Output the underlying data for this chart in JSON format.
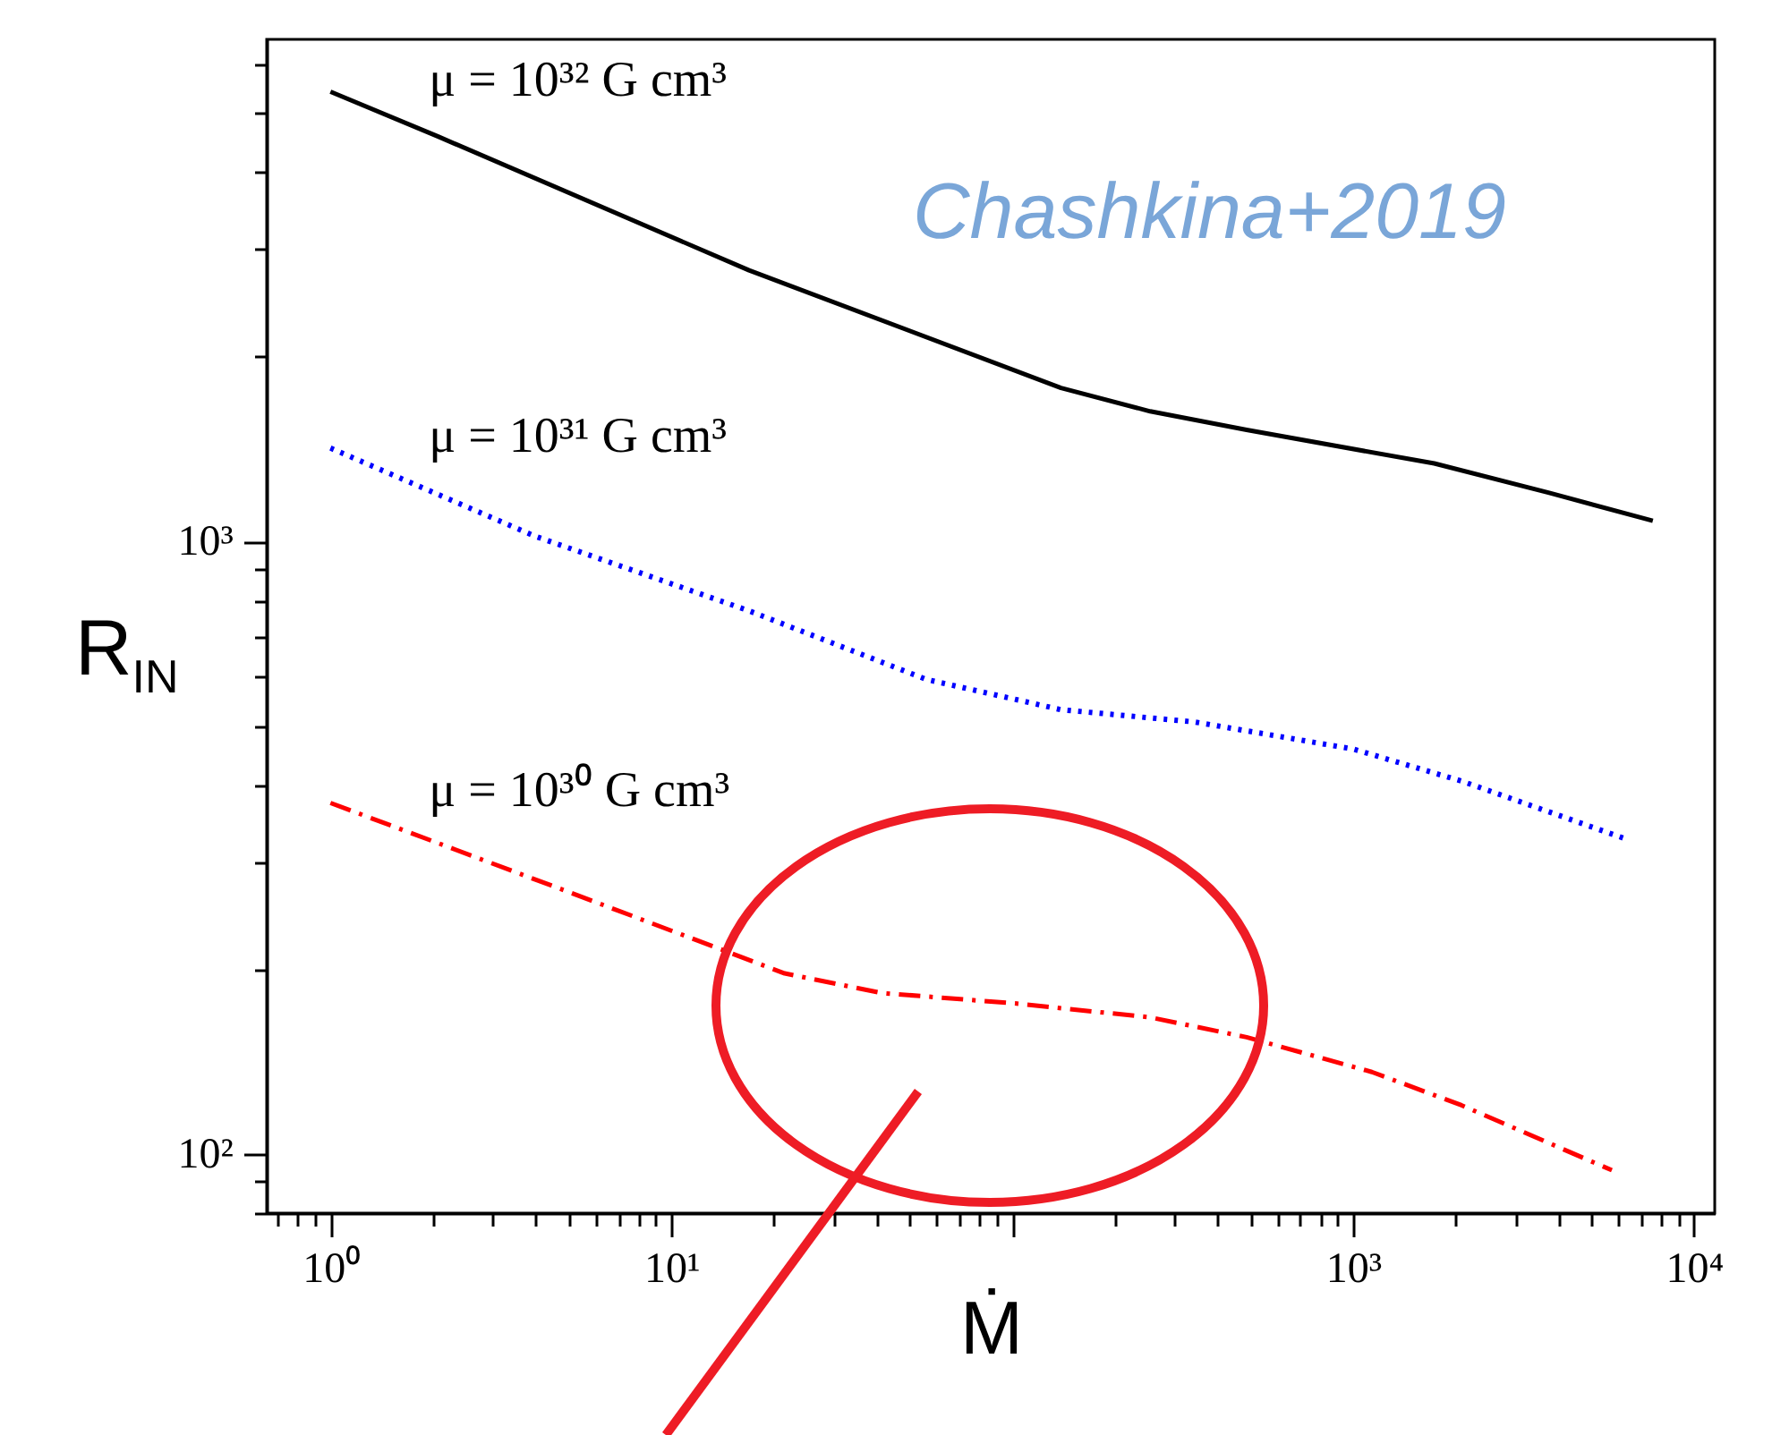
{
  "chart_data": {
    "type": "line",
    "xlabel": "Ṁ",
    "ylabel": "R$_{IN}$",
    "log": "xy",
    "marker": "none",
    "xlim": [
      0.65,
      11500
    ],
    "ylim": [
      80,
      6600
    ],
    "xticks": [
      {
        "value": 0.7,
        "label": null
      },
      {
        "value": 0.8,
        "label": null
      },
      {
        "value": 0.9,
        "label": null
      },
      {
        "value": 1,
        "label": "10⁰"
      },
      {
        "value": 2,
        "label": null
      },
      {
        "value": 3,
        "label": null
      },
      {
        "value": 4,
        "label": null
      },
      {
        "value": 5,
        "label": null
      },
      {
        "value": 6,
        "label": null
      },
      {
        "value": 7,
        "label": null
      },
      {
        "value": 8,
        "label": null
      },
      {
        "value": 9,
        "label": null
      },
      {
        "value": 10,
        "label": "10¹"
      },
      {
        "value": 20,
        "label": null
      },
      {
        "value": 30,
        "label": null
      },
      {
        "value": 40,
        "label": null
      },
      {
        "value": 50,
        "label": null
      },
      {
        "value": 60,
        "label": null
      },
      {
        "value": 70,
        "label": null
      },
      {
        "value": 80,
        "label": null
      },
      {
        "value": 90,
        "label": null
      },
      {
        "value": 100,
        "label": null
      },
      {
        "value": 200,
        "label": null
      },
      {
        "value": 300,
        "label": null
      },
      {
        "value": 400,
        "label": null
      },
      {
        "value": 500,
        "label": null
      },
      {
        "value": 600,
        "label": null
      },
      {
        "value": 700,
        "label": null
      },
      {
        "value": 800,
        "label": null
      },
      {
        "value": 900,
        "label": null
      },
      {
        "value": 1000,
        "label": "10³"
      },
      {
        "value": 2000,
        "label": null
      },
      {
        "value": 3000,
        "label": null
      },
      {
        "value": 4000,
        "label": null
      },
      {
        "value": 5000,
        "label": null
      },
      {
        "value": 6000,
        "label": null
      },
      {
        "value": 7000,
        "label": null
      },
      {
        "value": 8000,
        "label": null
      },
      {
        "value": 9000,
        "label": null
      },
      {
        "value": 10000,
        "label": "10⁴"
      }
    ],
    "yticks": [
      {
        "value": 80,
        "label": null
      },
      {
        "value": 90,
        "label": null
      },
      {
        "value": 100,
        "label": "10²"
      },
      {
        "value": 200,
        "label": null
      },
      {
        "value": 300,
        "label": null
      },
      {
        "value": 400,
        "label": null
      },
      {
        "value": 500,
        "label": null
      },
      {
        "value": 600,
        "label": null
      },
      {
        "value": 700,
        "label": null
      },
      {
        "value": 800,
        "label": null
      },
      {
        "value": 900,
        "label": null
      },
      {
        "value": 1000,
        "label": "10³"
      },
      {
        "value": 2000,
        "label": null
      },
      {
        "value": 3000,
        "label": null
      },
      {
        "value": 4000,
        "label": null
      },
      {
        "value": 5000,
        "label": null
      },
      {
        "value": 6000,
        "label": null
      }
    ],
    "series": [
      {
        "name": "μ = 10³² G cm³",
        "color": "#000000",
        "line_style": "solid",
        "x": [
          1,
          2.07,
          16.9,
          139,
          254,
          487,
          1730,
          3760,
          7570
        ],
        "values": [
          5420,
          4580,
          2770,
          1780,
          1630,
          1520,
          1340,
          1200,
          1080
        ]
      },
      {
        "name": "μ = 10³¹ G cm³",
        "color": "#0000ff",
        "line_style": "dotted",
        "x": [
          1,
          3.97,
          16.9,
          56,
          139,
          343,
          1000,
          2080,
          6470
        ],
        "values": [
          1420,
          1020,
          770,
          595,
          531,
          507,
          458,
          406,
          325
        ]
      },
      {
        "name": "μ = 10³⁰ G cm³",
        "color": "#ff0000",
        "line_style": "dashdot",
        "x": [
          1,
          5.05,
          21.5,
          41.4,
          102,
          254,
          487,
          1135,
          2080,
          5740
        ],
        "values": [
          374,
          267,
          197,
          183,
          176,
          167,
          155,
          136,
          120,
          94
        ]
      }
    ],
    "annotations": [
      "Chashkina+2019"
    ]
  }
}
